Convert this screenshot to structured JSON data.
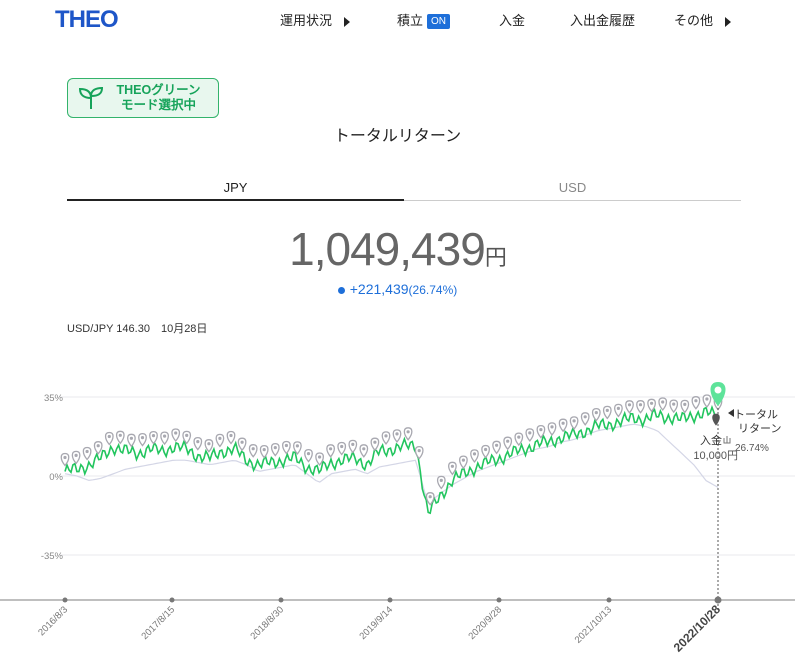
{
  "header": {
    "logo": "THEO",
    "nav": {
      "performance": "運用状況",
      "auto_invest": "積立",
      "auto_invest_badge": "ON",
      "deposit": "入金",
      "history": "入出金履歴",
      "others": "その他"
    }
  },
  "badge": {
    "line1": "THEOグリーン",
    "line2": "モード選択中"
  },
  "page_title": "トータルリターン",
  "tabs": {
    "jpy": "JPY",
    "usd": "USD",
    "active": "JPY"
  },
  "summary": {
    "total": "1,049,439",
    "currency": "円",
    "change": "+221,439",
    "change_pct": "(26.74%)"
  },
  "fx_rate": "USD/JPY 146.30　10月28日",
  "colors": {
    "accent": "#1e6fd9",
    "green": "#22c55e",
    "gray_line": "#d4d6e6",
    "marker": "#a8a8b0",
    "logo": "#1e56c8"
  },
  "chart_data": {
    "type": "line",
    "y_ticks": [
      "35%",
      "0%",
      "-35%"
    ],
    "ylim": [
      -55,
      45
    ],
    "x_ticks": [
      "2016/8/3",
      "2017/8/15",
      "2018/8/30",
      "2019/9/14",
      "2020/9/28",
      "2021/10/13",
      "2022/10/28"
    ],
    "x_range": [
      "2016/8/3",
      "2022/10/28"
    ],
    "series": [
      {
        "values": [
          2,
          3,
          5,
          8,
          13,
          11,
          10,
          12,
          11,
          13,
          12,
          9,
          8,
          11,
          12,
          7,
          5,
          6,
          7,
          8,
          4,
          2,
          6,
          7,
          8,
          5,
          11,
          12,
          13,
          14,
          -17,
          -9,
          -2,
          1,
          4,
          6,
          8,
          10,
          12,
          14,
          15,
          17,
          18,
          20,
          22,
          23,
          24,
          26,
          25,
          27,
          26,
          25,
          27,
          28,
          26.74
        ],
        "color": "#22c55e"
      },
      {
        "values": [
          1,
          0,
          -2,
          -1,
          1,
          3,
          4,
          5,
          6,
          7,
          7,
          6,
          5,
          6,
          7,
          5,
          2,
          3,
          4,
          5,
          1,
          -3,
          1,
          2,
          3,
          1,
          4,
          5,
          6,
          7,
          -12,
          -8,
          -4,
          -1,
          2,
          4,
          6,
          8,
          10,
          12,
          13,
          15,
          16,
          18,
          20,
          21,
          22,
          23,
          22,
          20,
          15,
          10,
          5,
          -2,
          -5
        ],
        "color": "#d4d6e6"
      }
    ],
    "deposit_markers_count": 60,
    "annotation_deposit_label": "入金",
    "annotation_deposit_amount": "10,000円",
    "annotation_return_label": "トータル\nリターン",
    "annotation_return_value": "26.74%"
  }
}
